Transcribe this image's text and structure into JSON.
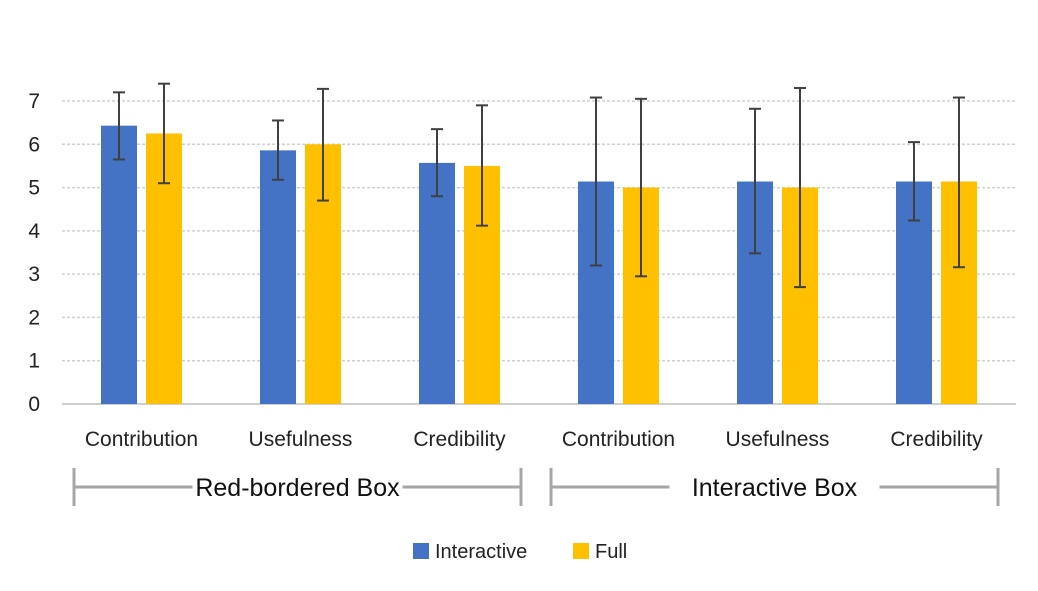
{
  "chart_data": {
    "type": "bar",
    "categories": [
      "Contribution",
      "Usefulness",
      "Credibility",
      "Contribution",
      "Usefulness",
      "Credibility"
    ],
    "groups": [
      {
        "label": "Red-bordered Box",
        "categories": [
          0,
          1,
          2
        ]
      },
      {
        "label": "Interactive Box",
        "categories": [
          3,
          4,
          5
        ]
      }
    ],
    "series": [
      {
        "name": "Interactive",
        "color": "#4472C4",
        "values": [
          6.43,
          5.86,
          5.57,
          5.14,
          5.14,
          5.14
        ],
        "error_low": [
          5.65,
          5.18,
          4.8,
          3.2,
          3.48,
          4.24
        ],
        "error_high": [
          7.2,
          6.55,
          6.35,
          7.08,
          6.82,
          6.05
        ]
      },
      {
        "name": "Full",
        "color": "#FFC000",
        "values": [
          6.25,
          6.0,
          5.5,
          5.0,
          5.0,
          5.14
        ],
        "error_low": [
          5.1,
          4.7,
          4.12,
          2.95,
          2.7,
          3.16
        ],
        "error_high": [
          7.4,
          7.28,
          6.9,
          7.05,
          7.3,
          7.08
        ]
      }
    ],
    "ylim": [
      0,
      7
    ],
    "yticks": [
      "0",
      "1",
      "2",
      "3",
      "4",
      "5",
      "6",
      "7"
    ],
    "grid": true,
    "legend_position": "bottom"
  }
}
